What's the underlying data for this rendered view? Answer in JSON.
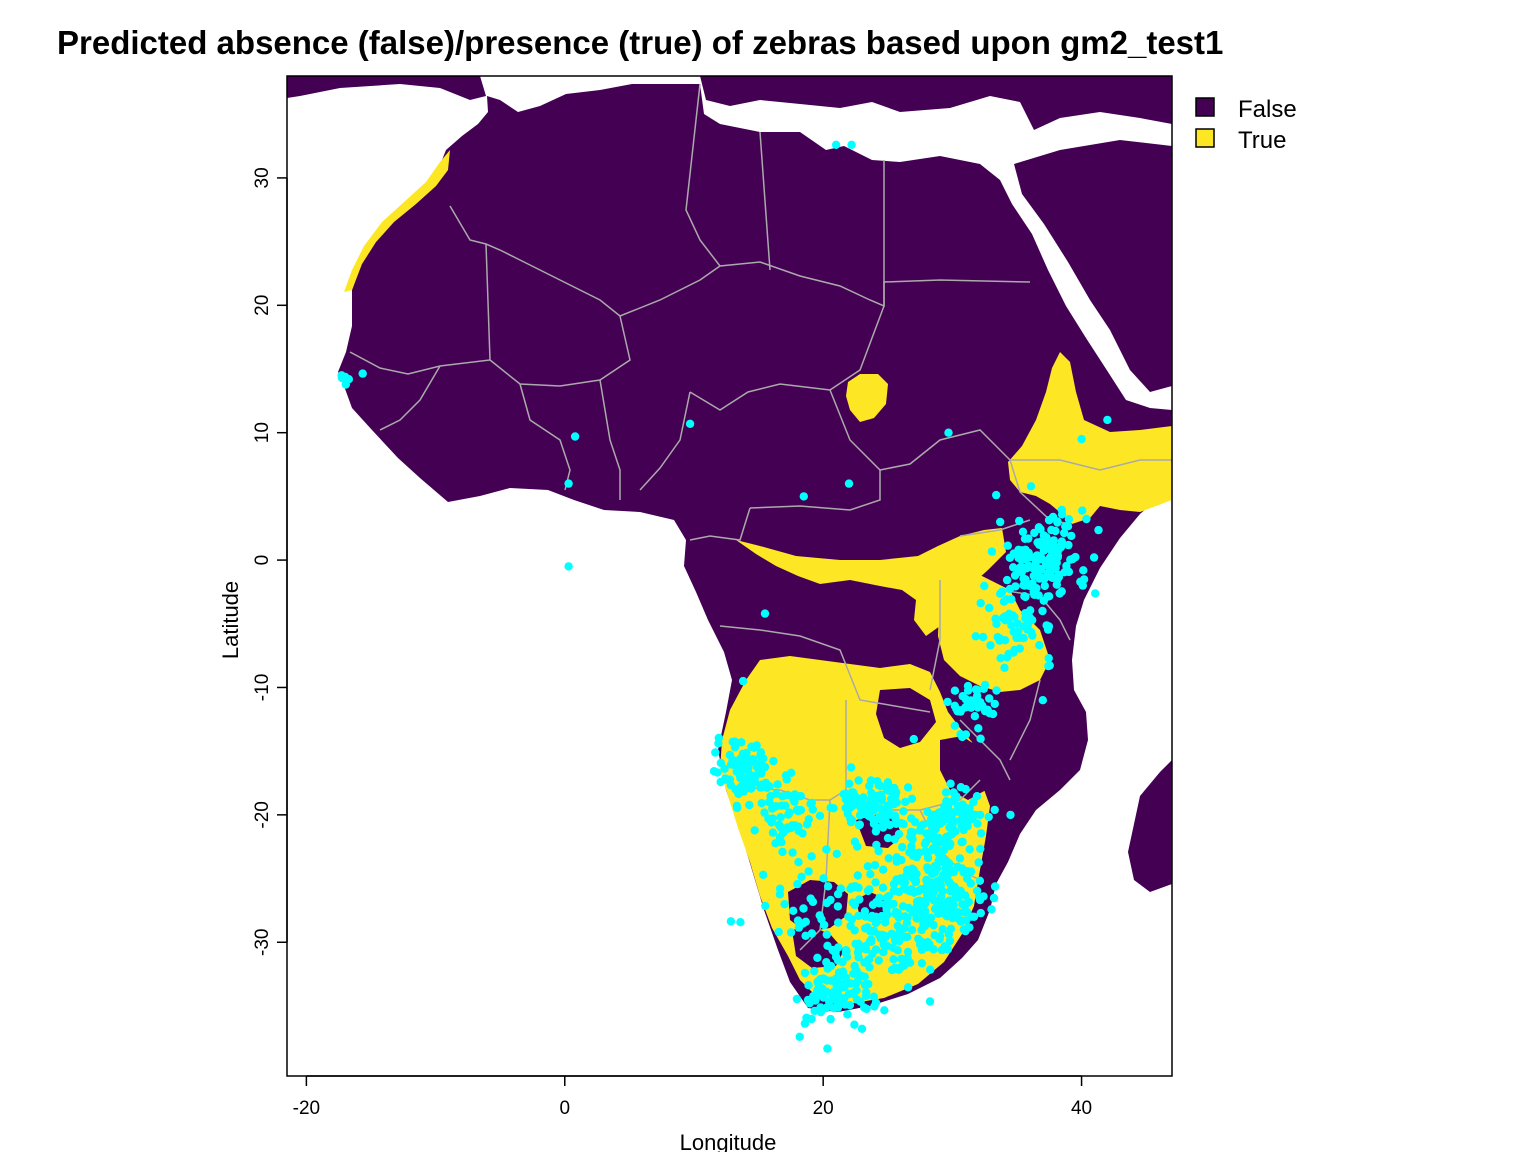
{
  "title": "Predicted absence (false)/presence (true) of zebras based upon gm2_test1",
  "colors": {
    "false": "#440154",
    "true": "#fde725",
    "points": "#00ffff",
    "border": "#aaaaaa",
    "background": "#ffffff"
  },
  "chart_data": {
    "type": "map",
    "xlabel": "Longitude",
    "ylabel": "Latitude",
    "xlim": [
      -21.5,
      47
    ],
    "ylim": [
      -40.5,
      38
    ],
    "xticks": [
      -20,
      0,
      20,
      40
    ],
    "yticks": [
      30,
      20,
      10,
      0,
      -10,
      -20,
      -30
    ],
    "legend": {
      "position": "top-right",
      "entries": [
        {
          "label": "False",
          "value": false
        },
        {
          "label": "True",
          "value": true
        }
      ]
    }
  }
}
